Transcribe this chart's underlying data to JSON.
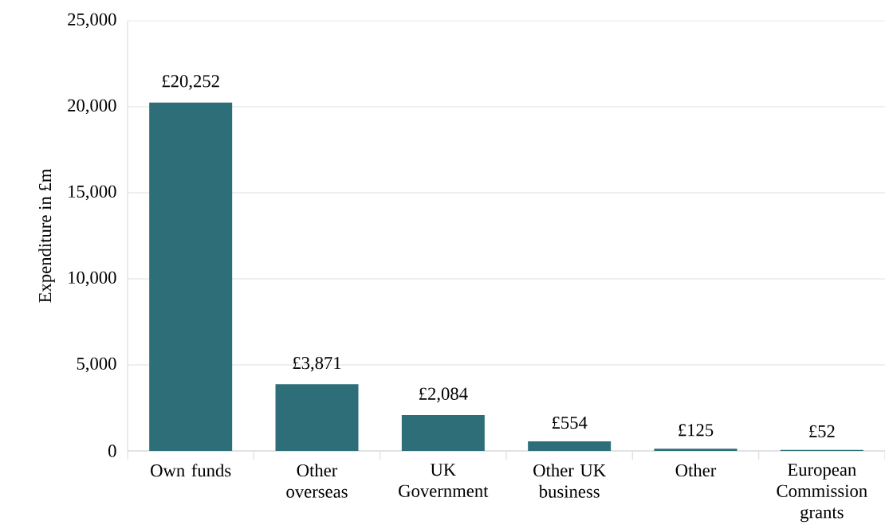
{
  "chart_data": {
    "type": "bar",
    "ylabel": "Expenditure in £m",
    "categories": [
      "Own funds",
      "Other overseas",
      "UK Government",
      "Other UK business",
      "Other",
      "European Commission grants"
    ],
    "values": [
      20252,
      3871,
      2084,
      554,
      125,
      52
    ],
    "value_labels": [
      "£20,252",
      "£3,871",
      "£2,084",
      "£554",
      "£125",
      "£52"
    ],
    "color": "#2e6e78",
    "ylim": [
      0,
      25000
    ],
    "yticks": [
      {
        "value": 0,
        "label": "0"
      },
      {
        "value": 5000,
        "label": "5,000"
      },
      {
        "value": 10000,
        "label": "10,000"
      },
      {
        "value": 15000,
        "label": "15,000"
      },
      {
        "value": 20000,
        "label": "20,000"
      },
      {
        "value": 25000,
        "label": "25,000"
      }
    ],
    "grid": "y"
  }
}
